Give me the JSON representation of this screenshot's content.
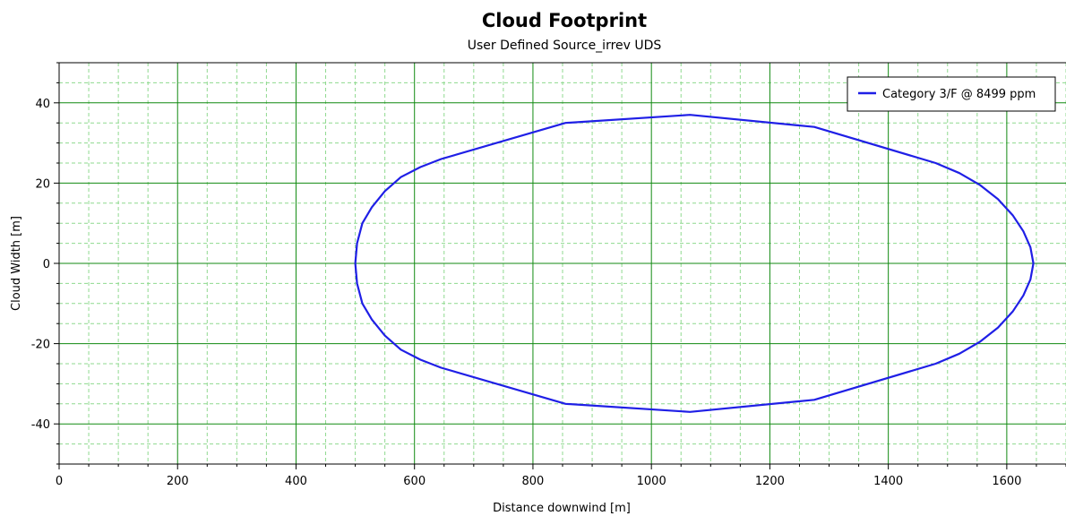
{
  "chart_data": {
    "type": "line",
    "title": "Cloud Footprint",
    "subtitle": "User Defined Source_irrev UDS",
    "xlabel": "Distance downwind [m]",
    "ylabel": "Cloud Width [m]",
    "xlim": [
      0,
      1700
    ],
    "ylim": [
      -50,
      50
    ],
    "x_ticks": [
      0,
      200,
      400,
      600,
      800,
      1000,
      1200,
      1400,
      1600
    ],
    "y_ticks": [
      -40,
      -20,
      0,
      20,
      40
    ],
    "grid": true,
    "legend_position": "top-right",
    "series": [
      {
        "name": "Category 3/F @ 8499 ppm",
        "color": "#1f1fe6",
        "x": [
          500,
          503,
          512,
          528,
          550,
          577,
          610,
          645,
          855,
          1065,
          1275,
          1480,
          1520,
          1555,
          1585,
          1610,
          1628,
          1640,
          1645,
          1640,
          1628,
          1610,
          1585,
          1555,
          1520,
          1480,
          1275,
          1065,
          855,
          645,
          610,
          577,
          550,
          528,
          512,
          503,
          500
        ],
        "y": [
          0,
          5,
          10,
          14,
          18,
          21.5,
          24,
          26,
          35,
          37,
          34,
          25,
          22.5,
          19.5,
          16,
          12,
          8,
          4,
          0,
          -4,
          -8,
          -12,
          -16,
          -19.5,
          -22.5,
          -25,
          -34,
          -37,
          -35,
          -26,
          -24,
          -21.5,
          -18,
          -14,
          -10,
          -5,
          0
        ]
      }
    ]
  }
}
